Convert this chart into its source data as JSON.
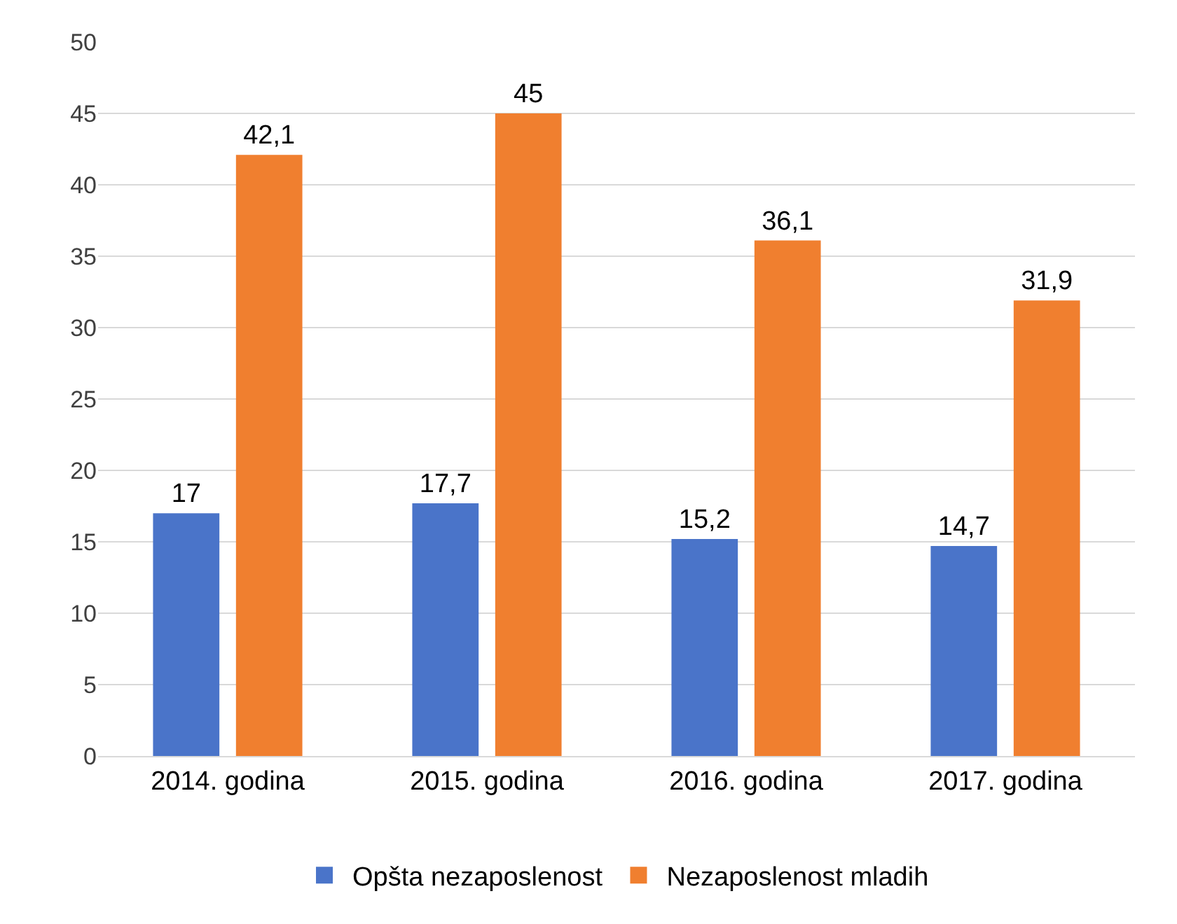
{
  "chart_data": {
    "type": "bar",
    "categories": [
      "2014. godina",
      "2015. godina",
      "2016. godina",
      "2017. godina"
    ],
    "series": [
      {
        "name": "Opšta nezaposlenost",
        "color": "#4a74c9",
        "values": [
          17,
          17.7,
          15.2,
          14.7
        ],
        "value_labels": [
          "17",
          "17,7",
          "15,2",
          "14,7"
        ]
      },
      {
        "name": "Nezaposlenost mladih",
        "color": "#f07f2f",
        "values": [
          42.1,
          45,
          36.1,
          31.9
        ],
        "value_labels": [
          "42,1",
          "45",
          "36,1",
          "31,9"
        ]
      }
    ],
    "ylim": [
      0,
      50
    ],
    "yticks": [
      0,
      5,
      10,
      15,
      20,
      25,
      30,
      35,
      40,
      45,
      50
    ],
    "grid": "y",
    "legend": "bottom"
  }
}
